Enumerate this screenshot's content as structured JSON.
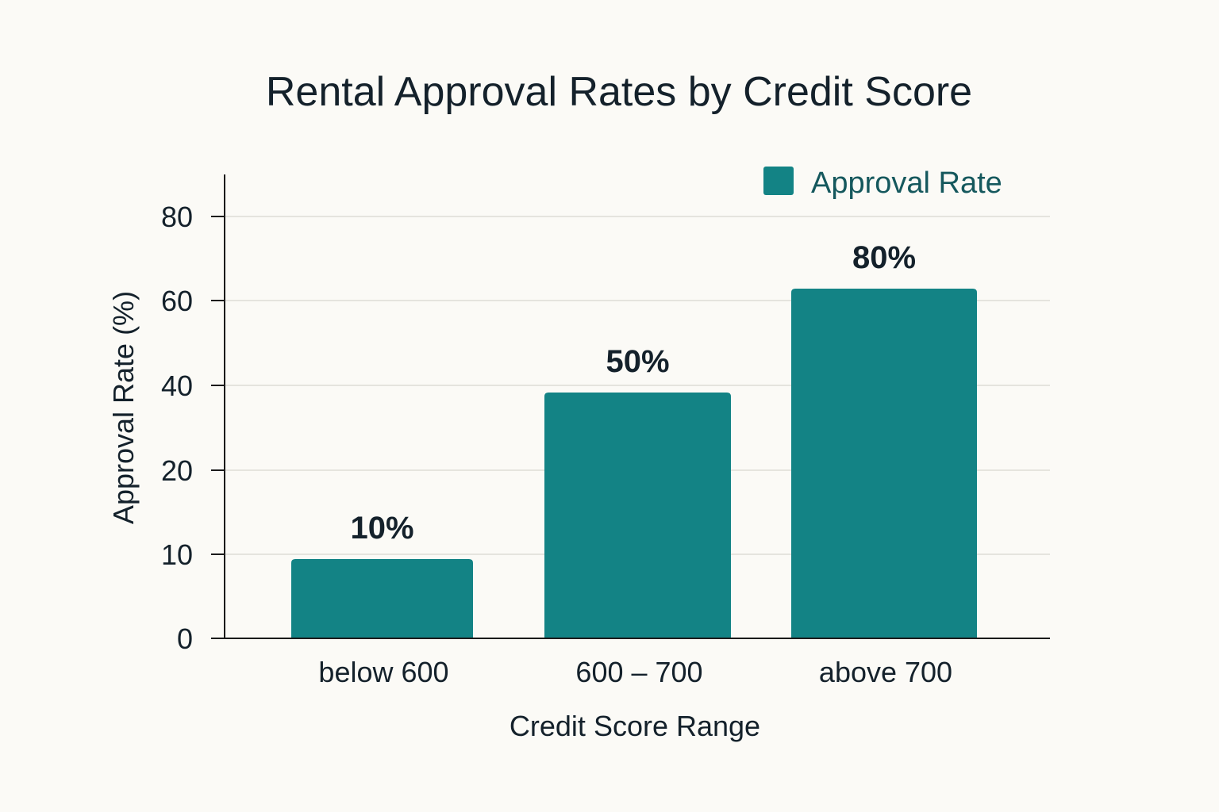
{
  "chart_data": {
    "type": "bar",
    "title": "Rental Approval Rates by Credit Score",
    "xlabel": "Credit Score Range",
    "ylabel": "Approval Rate (%)",
    "categories": [
      "below 600",
      "600 – 700",
      "above 700"
    ],
    "series": [
      {
        "name": "Approval Rate",
        "color": "#138385",
        "values": [
          10,
          50,
          80
        ],
        "data_labels": [
          "10%",
          "50%",
          "80%"
        ]
      }
    ],
    "y_ticks": [
      {
        "label": "0",
        "value": 0
      },
      {
        "label": "10",
        "value": 10
      },
      {
        "label": "20",
        "value": 20
      },
      {
        "label": "40",
        "value": 40
      },
      {
        "label": "60",
        "value": 60
      },
      {
        "label": "80",
        "value": 80
      }
    ],
    "grid": true,
    "legend_position": "top-right"
  }
}
